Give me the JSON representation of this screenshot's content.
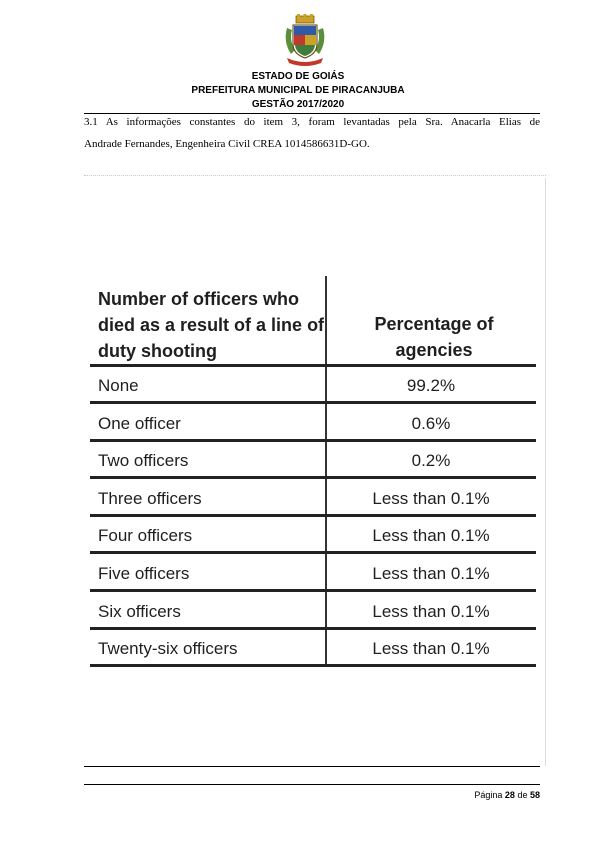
{
  "header": {
    "line1": "ESTADO DE GOIÁS",
    "line2": "PREFEITURA MUNICIPAL DE PIRACANJUBA",
    "line3": "GESTÃO 2017/2020"
  },
  "body": {
    "paragraph_line1": "3.1 As informações constantes do item 3, foram levantadas  pela Sra. Anacarla Elias de",
    "paragraph_line2": "Andrade Fernandes, Engenheira Civil CREA 1014586631D-GO."
  },
  "table": {
    "col1_header": "Number of officers who died as a result of a line of duty shooting",
    "col2_header": "Percentage of agencies",
    "rows": [
      {
        "officers": "None",
        "percent": "99.2%"
      },
      {
        "officers": "One officer",
        "percent": "0.6%"
      },
      {
        "officers": "Two officers",
        "percent": "0.2%"
      },
      {
        "officers": "Three officers",
        "percent": "Less than 0.1%"
      },
      {
        "officers": "Four officers",
        "percent": "Less than 0.1%"
      },
      {
        "officers": "Five officers",
        "percent": "Less than 0.1%"
      },
      {
        "officers": "Six officers",
        "percent": "Less than 0.1%"
      },
      {
        "officers": "Twenty-six officers",
        "percent": "Less than 0.1%"
      }
    ]
  },
  "footer": {
    "page_label": "Página",
    "page_current": "28",
    "page_of": "de",
    "page_total": "58"
  },
  "colors": {
    "text": "#000000",
    "table_text": "#1f1f1f",
    "crest_red": "#c0392b",
    "crest_gold": "#c9a227",
    "crest_blue": "#2e5aa8"
  },
  "icons": {
    "crest": "municipal-coat-of-arms"
  }
}
